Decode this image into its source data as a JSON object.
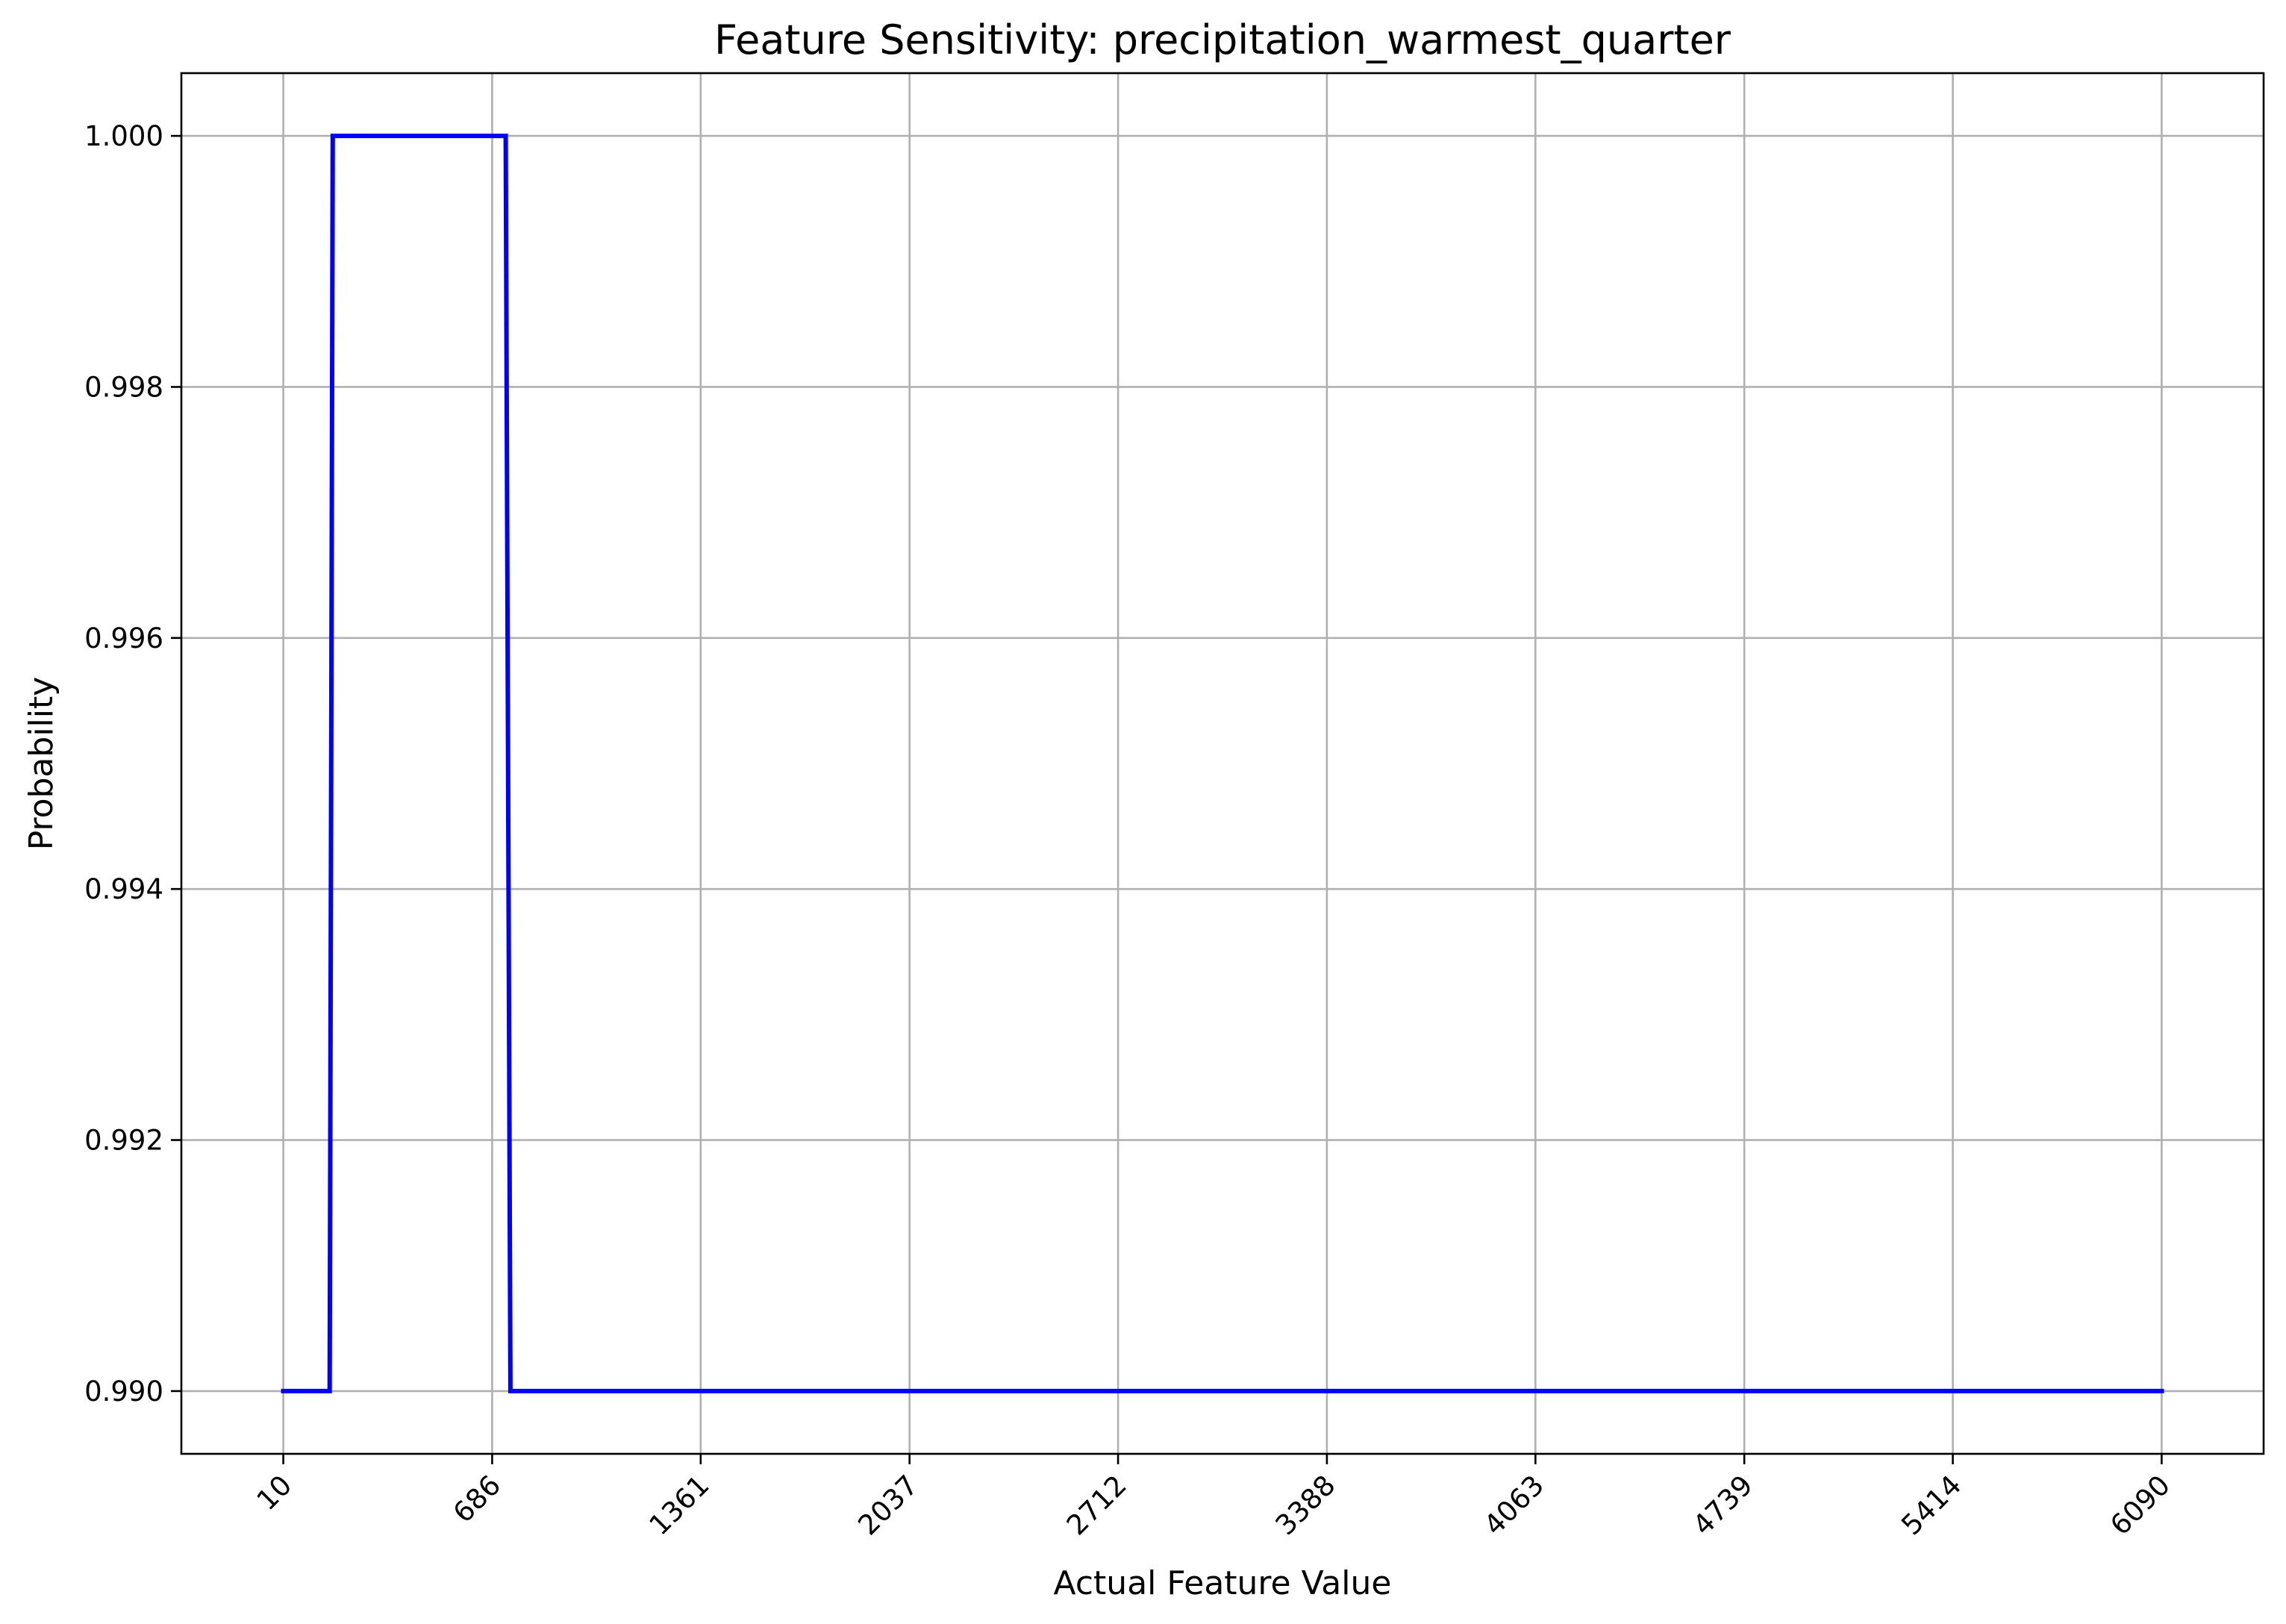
{
  "chart_data": {
    "type": "line",
    "title": "Feature Sensitivity: precipitation_warmest_quarter",
    "xlabel": "Actual Feature Value",
    "ylabel": "Probability",
    "xlim": [
      -320,
      6420
    ],
    "ylim": [
      0.9895,
      1.0005
    ],
    "grid": true,
    "xticks": [
      10,
      686,
      1361,
      2037,
      2712,
      3388,
      4063,
      4739,
      5414,
      6090
    ],
    "xtick_labels": [
      "10",
      "686",
      "1361",
      "2037",
      "2712",
      "3388",
      "4063",
      "4739",
      "5414",
      "6090"
    ],
    "yticks": [
      0.99,
      0.992,
      0.994,
      0.996,
      0.998,
      1.0
    ],
    "ytick_labels": [
      "0.990",
      "0.992",
      "0.994",
      "0.996",
      "0.998",
      "1.000"
    ],
    "series": [
      {
        "color": "#0000ff",
        "x": [
          10,
          160,
          170,
          730,
          745,
          6090
        ],
        "y": [
          0.99,
          0.99,
          1.0,
          1.0,
          0.99,
          0.99
        ]
      }
    ]
  }
}
